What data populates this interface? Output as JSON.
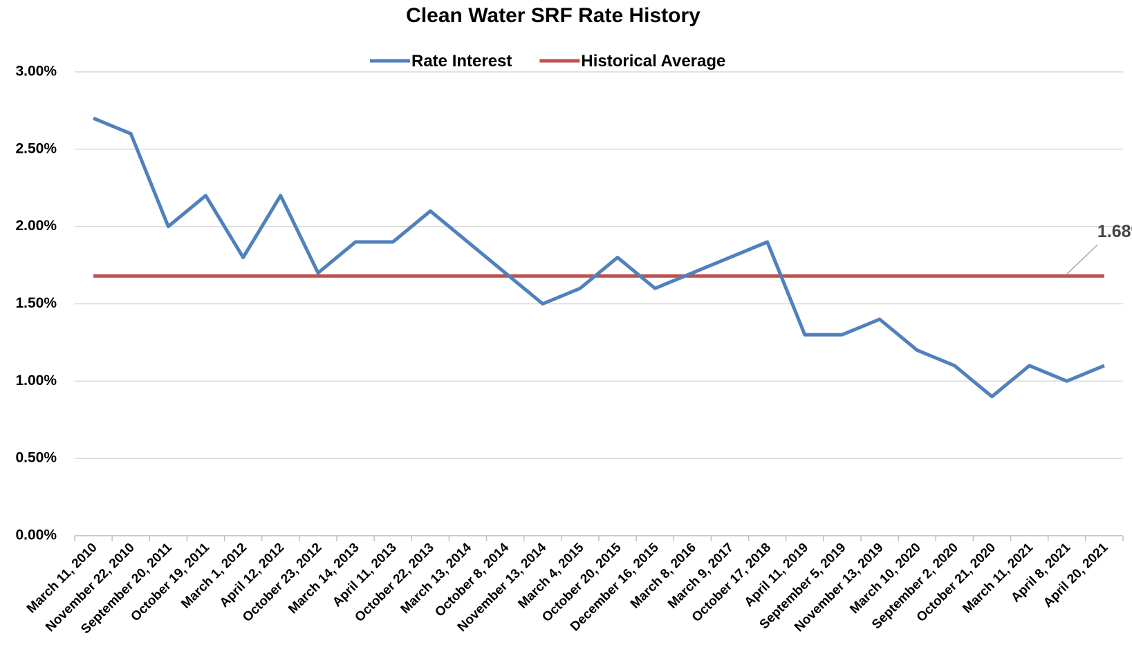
{
  "chart_data": {
    "type": "line",
    "title": "Clean Water SRF Rate History",
    "categories": [
      "March 11, 2010",
      "November 22, 2010",
      "September 20, 2011",
      "October 19, 2011",
      "March 1, 2012",
      "April 12, 2012",
      "October 23, 2012",
      "March 14, 2013",
      "April 11, 2013",
      "October 22, 2013",
      "March 13, 2014",
      "October 8, 2014",
      "November 13, 2014",
      "March 4, 2015",
      "October 20, 2015",
      "December 16, 2015",
      "March 8, 2016",
      "March 9, 2017",
      "October 17, 2018",
      "April 11, 2019",
      "September 5, 2019",
      "November 13, 2019",
      "March 10, 2020",
      "September 2, 2020",
      "October 21, 2020",
      "March 11, 2021",
      "April 8, 2021",
      "April 20, 2021"
    ],
    "series": [
      {
        "name": "Rate Interest",
        "color": "#4f81bd",
        "values": [
          2.7,
          2.6,
          2.0,
          2.2,
          1.8,
          2.2,
          1.7,
          1.9,
          1.9,
          2.1,
          1.9,
          1.7,
          1.5,
          1.6,
          1.8,
          1.6,
          1.7,
          1.8,
          1.9,
          1.3,
          1.3,
          1.4,
          1.2,
          1.1,
          0.9,
          1.1,
          1.0,
          1.1
        ]
      },
      {
        "name": "Historical Average",
        "color": "#c0504d",
        "values": [
          1.68,
          1.68,
          1.68,
          1.68,
          1.68,
          1.68,
          1.68,
          1.68,
          1.68,
          1.68,
          1.68,
          1.68,
          1.68,
          1.68,
          1.68,
          1.68,
          1.68,
          1.68,
          1.68,
          1.68,
          1.68,
          1.68,
          1.68,
          1.68,
          1.68,
          1.68,
          1.68,
          1.68
        ],
        "value_label": "1.68%"
      }
    ],
    "ylim": [
      0,
      3
    ],
    "yticks": [
      {
        "value": 0,
        "label": "0.00%"
      },
      {
        "value": 0.5,
        "label": "0.50%"
      },
      {
        "value": 1,
        "label": "1.00%"
      },
      {
        "value": 1.5,
        "label": "1.50%"
      },
      {
        "value": 2,
        "label": "2.00%"
      },
      {
        "value": 2.5,
        "label": "2.50%"
      },
      {
        "value": 3,
        "label": "3.00%"
      }
    ],
    "grid": true,
    "legend": "top"
  }
}
